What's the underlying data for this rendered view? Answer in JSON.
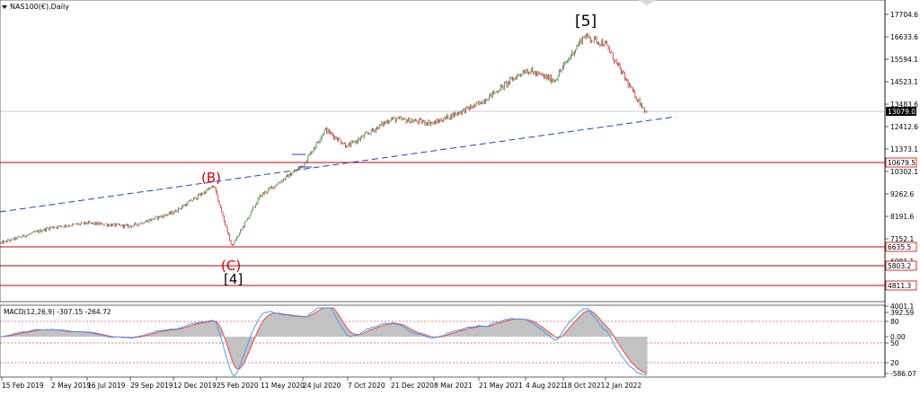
{
  "window": {
    "title": "NAS100(€),Daily"
  },
  "colors": {
    "up_candle": "#1f6f1f",
    "down_candle": "#cc0000",
    "support_lines": "#cc0000",
    "trendline": "#1f3fcc",
    "macd_hist": "#c0c0c0",
    "macd_line": "#3399ff",
    "signal_line": "#ff3333",
    "price_box": "#000000",
    "level_box_border": "#cc0000"
  },
  "price_axis": {
    "ticks": [
      "17704.6",
      "16633.6",
      "15594.1",
      "14523.1",
      "13483.6",
      "12412.6",
      "11373.1",
      "10302.1",
      "9262.6",
      "8191.6",
      "7152.1",
      "6081.1",
      "5041.6",
      "4001.1"
    ],
    "current_price": "13079.0",
    "levels": [
      "10679.5",
      "6635.5",
      "5803.2",
      "4811.3"
    ]
  },
  "wave_labels": {
    "wave5": "[5]",
    "waveB": "(B)",
    "waveC": "(C)",
    "wave4": "[4]"
  },
  "macd": {
    "title": "MACD(12,26,9) -307.15 -264.72",
    "ticks": [
      "392.59",
      "80",
      "0.00",
      "50",
      "20",
      "-586.07"
    ]
  },
  "date_axis": {
    "labels": [
      "15 Feb 2019",
      "2 May 2019",
      "16 Jul 2019",
      "29 Sep 2019",
      "12 Dec 2019",
      "25 Feb 2020",
      "11 May 2020",
      "24 Jul 2020",
      "7 Oct 2020",
      "21 Dec 2020",
      "8 Mar 2021",
      "21 May 2021",
      "4 Aug 2021",
      "18 Oct 2021",
      "2 Jan 2022"
    ]
  },
  "chart_data": {
    "type": "candlestick",
    "title": "NAS100(€),Daily",
    "y_axis_labels": [
      "17704.6",
      "16633.6",
      "15594.1",
      "14523.1",
      "13483.6",
      "12412.6",
      "11373.1",
      "10302.1",
      "9262.6",
      "8191.6",
      "7152.1",
      "6081.1",
      "5041.6",
      "4001.1"
    ],
    "x_axis_labels": [
      "15 Feb 2019",
      "2 May 2019",
      "16 Jul 2019",
      "29 Sep 2019",
      "12 Dec 2019",
      "25 Feb 2020",
      "11 May 2020",
      "24 Jul 2020",
      "7 Oct 2020",
      "21 Dec 2020",
      "8 Mar 2021",
      "21 May 2021",
      "4 Aug 2021",
      "18 Oct 2021",
      "2 Jan 2022"
    ],
    "price_path_approx": [
      [
        "15 Feb 2019",
        6950
      ],
      [
        "2 May 2019",
        7700
      ],
      [
        "16 Jul 2019",
        7900
      ],
      [
        "29 Sep 2019",
        7750
      ],
      [
        "12 Dec 2019",
        8400
      ],
      [
        "20 Feb 2020",
        9650
      ],
      [
        "20 Mar 2020",
        6800
      ],
      [
        "11 May 2020",
        9200
      ],
      [
        "24 Jul 2020",
        10600
      ],
      [
        "2 Sep 2020",
        12300
      ],
      [
        "7 Oct 2020",
        11500
      ],
      [
        "21 Dec 2020",
        12800
      ],
      [
        "8 Mar 2021",
        12600
      ],
      [
        "21 May 2021",
        13500
      ],
      [
        "4 Aug 2021",
        15100
      ],
      [
        "4 Oct 2021",
        14600
      ],
      [
        "22 Nov 2021",
        16700
      ],
      [
        "2 Jan 2022",
        16300
      ],
      [
        "25 Jan 2022",
        14000
      ],
      [
        "10 Feb 2022",
        13079
      ]
    ],
    "horizontal_levels": [
      10679.5,
      6635.5,
      5803.2,
      4811.3
    ],
    "trendline": "dashed, rising from left edge through (B) to right",
    "macd": {
      "title": "MACD(12,26,9) -307.15 -264.72",
      "ticks": [
        "392.59",
        "80",
        "0.00",
        "50",
        "20",
        "-586.07"
      ]
    }
  }
}
